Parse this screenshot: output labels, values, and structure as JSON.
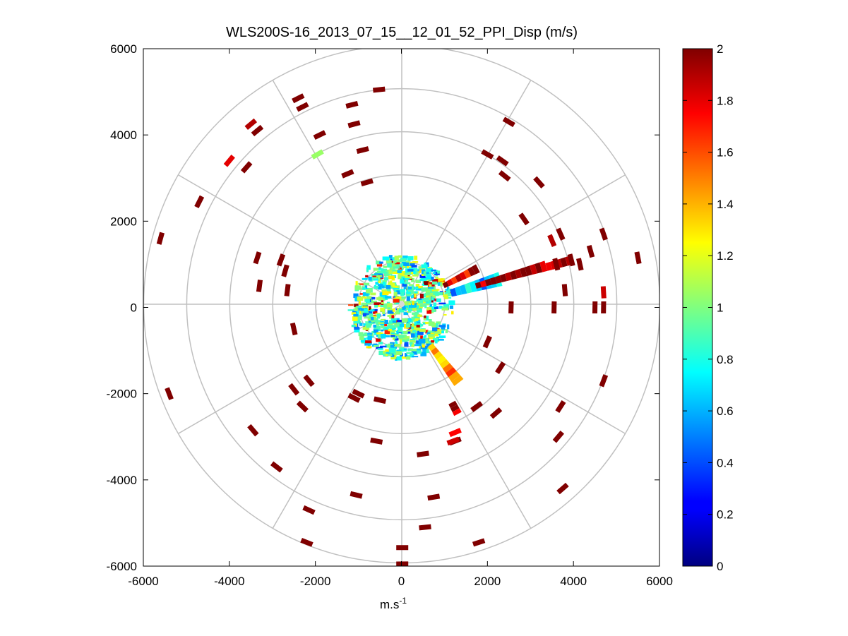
{
  "chart_data": {
    "type": "heatmap",
    "subtype": "polar-ppi",
    "title": "WLS200S-16_2013_07_15__12_01_52_PPI_Disp (m/s)",
    "xlabel": "m.s",
    "xlabel_superscript": "-1",
    "ylabel": "",
    "xlim": [
      -6000,
      6000
    ],
    "ylim": [
      -6000,
      6000
    ],
    "xticks": [
      -6000,
      -4000,
      -2000,
      0,
      2000,
      4000,
      6000
    ],
    "yticks": [
      6000,
      4000,
      2000,
      0,
      -2000,
      -4000,
      -6000
    ],
    "xtick_labels": [
      "-6000",
      "-4000",
      "-2000",
      "0",
      "2000",
      "4000",
      "6000"
    ],
    "ytick_labels": [
      "6000",
      "4000",
      "2000",
      "0",
      "-2000",
      "-4000",
      "-6000"
    ],
    "range_rings_m": [
      1000,
      2000,
      3000,
      4000,
      5000,
      6000
    ],
    "spoke_angles_deg": [
      0,
      30,
      60,
      90,
      120,
      150,
      180,
      210,
      240,
      270,
      300,
      330
    ],
    "colorbar": {
      "colormap": "jet",
      "range": [
        0,
        2
      ],
      "ticks": [
        0,
        0.2,
        0.4,
        0.6,
        0.8,
        1,
        1.2,
        1.4,
        1.6,
        1.8,
        2
      ],
      "tick_labels": [
        "0",
        "0.2",
        "0.4",
        "0.6",
        "0.8",
        "1",
        "1.2",
        "1.4",
        "1.6",
        "1.8",
        "2"
      ]
    },
    "near_field": {
      "max_range_m": 1200,
      "typical_value": 0.9
    },
    "sectors": [
      {
        "az_from": 60,
        "az_to": 66,
        "r_from": 1100,
        "r_to": 2000,
        "value": 1.85
      },
      {
        "az_from": 70,
        "az_to": 78,
        "r_from": 1200,
        "r_to": 2400,
        "value": 0.65
      },
      {
        "az_from": 72,
        "az_to": 76,
        "r_from": 1800,
        "r_to": 3500,
        "value": 2.0
      },
      {
        "az_from": 73,
        "az_to": 76,
        "r_from": 3500,
        "r_to": 4100,
        "value": 1.8
      },
      {
        "az_from": 139,
        "az_to": 146,
        "r_from": 1100,
        "r_to": 2200,
        "value": 1.5
      },
      {
        "az_from": 150,
        "az_to": 154,
        "r_from": 2500,
        "r_to": 2800,
        "value": 2.0
      }
    ],
    "cells": [
      {
        "x": -5600,
        "y": 1600,
        "value": 2.0
      },
      {
        "x": -5400,
        "y": -2000,
        "value": 2.0
      },
      {
        "x": -4700,
        "y": 2450,
        "value": 2.0
      },
      {
        "x": -4000,
        "y": 3400,
        "value": 1.8
      },
      {
        "x": -3500,
        "y": 4250,
        "value": 1.9
      },
      {
        "x": -3350,
        "y": 4100,
        "value": 2.0
      },
      {
        "x": -3600,
        "y": 3250,
        "value": 2.0
      },
      {
        "x": -3450,
        "y": -2850,
        "value": 2.0
      },
      {
        "x": -2900,
        "y": -3700,
        "value": 2.0
      },
      {
        "x": -2400,
        "y": 4850,
        "value": 2.0
      },
      {
        "x": -2300,
        "y": 4650,
        "value": 2.0
      },
      {
        "x": -1950,
        "y": 3550,
        "value": 1.05
      },
      {
        "x": -1900,
        "y": 4000,
        "value": 2.0
      },
      {
        "x": -2800,
        "y": 1100,
        "value": 2.0
      },
      {
        "x": -2700,
        "y": 850,
        "value": 2.0
      },
      {
        "x": -3350,
        "y": 1150,
        "value": 2.0
      },
      {
        "x": -3300,
        "y": 500,
        "value": 2.0
      },
      {
        "x": -2650,
        "y": 400,
        "value": 2.0
      },
      {
        "x": -2500,
        "y": -500,
        "value": 2.0
      },
      {
        "x": -2500,
        "y": -1900,
        "value": 2.0
      },
      {
        "x": -2300,
        "y": -2300,
        "value": 2.0
      },
      {
        "x": -2150,
        "y": -1700,
        "value": 2.0
      },
      {
        "x": -2150,
        "y": -4700,
        "value": 2.0
      },
      {
        "x": -2200,
        "y": -5450,
        "value": 2.0
      },
      {
        "x": -1150,
        "y": 4700,
        "value": 2.0
      },
      {
        "x": -1100,
        "y": 4250,
        "value": 2.0
      },
      {
        "x": -900,
        "y": 3650,
        "value": 2.0
      },
      {
        "x": -1250,
        "y": 3100,
        "value": 2.0
      },
      {
        "x": -800,
        "y": 2900,
        "value": 2.0
      },
      {
        "x": -520,
        "y": 5050,
        "value": 2.0
      },
      {
        "x": -1100,
        "y": -2100,
        "value": 2.0
      },
      {
        "x": -1000,
        "y": -2000,
        "value": 2.0
      },
      {
        "x": -500,
        "y": -2150,
        "value": 2.0
      },
      {
        "x": -580,
        "y": -3100,
        "value": 2.0
      },
      {
        "x": -1050,
        "y": -4350,
        "value": 2.0
      },
      {
        "x": 20,
        "y": -5570,
        "value": 2.0
      },
      {
        "x": 20,
        "y": -5950,
        "value": 2.0
      },
      {
        "x": 500,
        "y": -3400,
        "value": 2.0
      },
      {
        "x": 550,
        "y": -5100,
        "value": 2.0
      },
      {
        "x": 750,
        "y": -4400,
        "value": 2.0
      },
      {
        "x": 1250,
        "y": -3100,
        "value": 2.0
      },
      {
        "x": 1750,
        "y": -2300,
        "value": 2.0
      },
      {
        "x": 2200,
        "y": -2450,
        "value": 2.0
      },
      {
        "x": 1800,
        "y": -5450,
        "value": 2.0
      },
      {
        "x": 2000,
        "y": 3550,
        "value": 2.0
      },
      {
        "x": 2350,
        "y": 3400,
        "value": 2.0
      },
      {
        "x": 2400,
        "y": 3050,
        "value": 2.0
      },
      {
        "x": 2500,
        "y": 4300,
        "value": 2.0
      },
      {
        "x": 3200,
        "y": 2900,
        "value": 2.0
      },
      {
        "x": 2850,
        "y": 2050,
        "value": 2.0
      },
      {
        "x": 3700,
        "y": 1700,
        "value": 2.0
      },
      {
        "x": 3500,
        "y": 1550,
        "value": 1.9
      },
      {
        "x": 3600,
        "y": 1000,
        "value": 2.0
      },
      {
        "x": 3950,
        "y": 1100,
        "value": 2.0
      },
      {
        "x": 4150,
        "y": 1000,
        "value": 2.0
      },
      {
        "x": 4400,
        "y": 1300,
        "value": 2.0
      },
      {
        "x": 4700,
        "y": 1700,
        "value": 2.0
      },
      {
        "x": 5500,
        "y": 1150,
        "value": 2.0
      },
      {
        "x": 3800,
        "y": 400,
        "value": 2.0
      },
      {
        "x": 4700,
        "y": 350,
        "value": 1.85
      },
      {
        "x": 4500,
        "y": 0,
        "value": 2.0
      },
      {
        "x": 4700,
        "y": 0,
        "value": 2.0
      },
      {
        "x": 3550,
        "y": 0,
        "value": 2.0
      },
      {
        "x": 2550,
        "y": 0,
        "value": 2.0
      },
      {
        "x": 2000,
        "y": -800,
        "value": 2.0
      },
      {
        "x": 2300,
        "y": -1400,
        "value": 2.0
      },
      {
        "x": 3700,
        "y": -2300,
        "value": 2.0
      },
      {
        "x": 3650,
        "y": -3000,
        "value": 2.0
      },
      {
        "x": 3750,
        "y": -4200,
        "value": 2.0
      },
      {
        "x": 4700,
        "y": -1700,
        "value": 2.0
      },
      {
        "x": 1250,
        "y": -2900,
        "value": 1.75
      },
      {
        "x": 1200,
        "y": -3100,
        "value": 1.85
      }
    ]
  }
}
